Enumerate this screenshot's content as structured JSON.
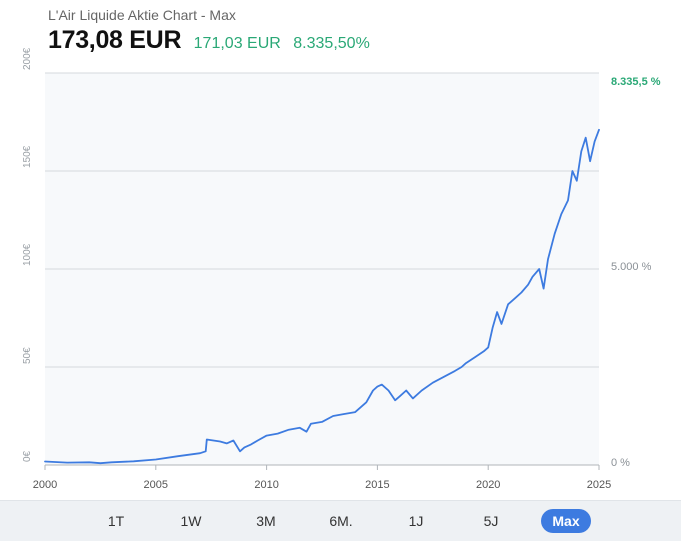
{
  "header": {
    "title": "L'Air Liquide Aktie Chart - Max",
    "price": "173,08 EUR",
    "change_abs": "171,03 EUR",
    "change_pct": "8.335,50%"
  },
  "tabs": [
    {
      "label": "1T",
      "active": false
    },
    {
      "label": "1W",
      "active": false
    },
    {
      "label": "3M",
      "active": false
    },
    {
      "label": "6M.",
      "active": false
    },
    {
      "label": "1J",
      "active": false
    },
    {
      "label": "5J",
      "active": false
    },
    {
      "label": "Max",
      "active": true
    }
  ],
  "colors": {
    "line": "#3d7be0",
    "positive": "#2aa876",
    "active_tab": "#3d7be0",
    "plot_background": "#f7f9fb"
  },
  "chart_data": {
    "type": "line",
    "title": "L'Air Liquide Aktie Chart - Max",
    "xlim": [
      2000,
      2025
    ],
    "x_ticks": [
      2000,
      2005,
      2010,
      2015,
      2020,
      2025
    ],
    "ylim_left": [
      0,
      200
    ],
    "y_ticks_left": [
      {
        "value": 0,
        "label": "0€"
      },
      {
        "value": 50,
        "label": "50€"
      },
      {
        "value": 100,
        "label": "100€"
      },
      {
        "value": 150,
        "label": "150€"
      },
      {
        "value": 200,
        "label": "200€"
      }
    ],
    "y_ticks_right": [
      {
        "value": 0,
        "label": "0 %"
      },
      {
        "value": 5000,
        "label": "5.000 %"
      }
    ],
    "last_value_label": "8.335,5 %",
    "grid": true,
    "series": [
      {
        "x": [
          2000.0,
          2001.0,
          2002.0,
          2002.5,
          2003.0,
          2004.0,
          2005.0,
          2006.0,
          2007.0,
          2007.25,
          2007.3,
          2007.6,
          2007.9,
          2008.2,
          2008.5,
          2008.8,
          2009.0,
          2009.3,
          2009.6,
          2010.0,
          2010.5,
          2011.0,
          2011.5,
          2011.8,
          2012.0,
          2012.5,
          2013.0,
          2013.5,
          2014.0,
          2014.5,
          2014.8,
          2015.0,
          2015.2,
          2015.5,
          2015.8,
          2016.0,
          2016.3,
          2016.6,
          2017.0,
          2017.5,
          2018.0,
          2018.5,
          2018.8,
          2019.0,
          2019.4,
          2019.8,
          2020.0,
          2020.2,
          2020.4,
          2020.6,
          2020.9,
          2021.2,
          2021.5,
          2021.8,
          2022.0,
          2022.3,
          2022.5,
          2022.7,
          2023.0,
          2023.3,
          2023.6,
          2023.8,
          2024.0,
          2024.2,
          2024.4,
          2024.6,
          2024.8,
          2025.0
        ],
        "y": [
          1.8,
          1.2,
          1.4,
          0.9,
          1.4,
          1.9,
          2.8,
          4.5,
          6.0,
          7.0,
          13.0,
          12.5,
          12.0,
          11.0,
          12.5,
          7.0,
          9.0,
          10.5,
          12.5,
          15.0,
          16.0,
          18.0,
          19.0,
          17.0,
          21.0,
          22.0,
          25.0,
          26.0,
          27.0,
          32.0,
          38.0,
          40.0,
          41.0,
          38.0,
          33.0,
          35.0,
          38.0,
          34.0,
          38.0,
          42.0,
          45.0,
          48.0,
          50.0,
          52.0,
          55.0,
          58.0,
          60.0,
          70.0,
          78.0,
          72.0,
          82.0,
          85.0,
          88.0,
          92.0,
          96.0,
          100.0,
          90.0,
          105.0,
          118.0,
          128.0,
          135.0,
          150.0,
          145.0,
          160.0,
          167.0,
          155.0,
          165.0,
          171.0
        ]
      }
    ]
  }
}
